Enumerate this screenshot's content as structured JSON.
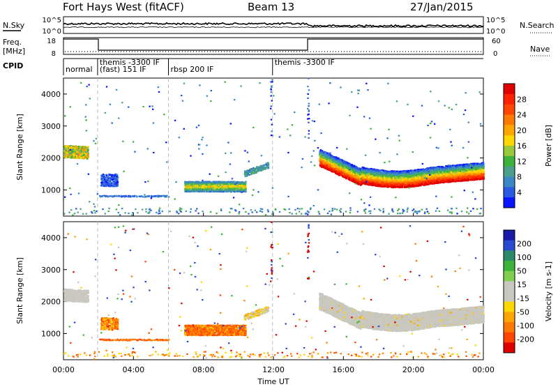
{
  "header": {
    "station": "Fort Hays West (fitACF)",
    "beam": "Beam 13",
    "date": "27/Jan/2015"
  },
  "strip_labels": {
    "nsky": "N.Sky",
    "nsearch": "N.Search",
    "freq": "Freq.",
    "freq_unit": "[MHz]",
    "nave": "Nave",
    "cpid": "CPID",
    "nsky_ticks": [
      "10^5",
      "10^0"
    ],
    "nsearch_ticks": [
      "10^5",
      "10^0"
    ],
    "freq_ticks": [
      "18",
      "8"
    ],
    "nave_ticks": [
      "60",
      "0"
    ]
  },
  "cpid_segments": [
    {
      "label": "normal",
      "start": 0.0
    },
    {
      "label": "themis -3300 IF",
      "start": 1.95
    },
    {
      "label": "(fast) 151 IF",
      "start": 1.95
    },
    {
      "label": "rbsp 200 IF",
      "start": 6.0
    },
    {
      "label": "themis -3300 IF",
      "start": 11.95
    }
  ],
  "chart_data": [
    {
      "type": "heatmap",
      "name": "power",
      "ylabel": "Slant Range [km]",
      "ylim": [
        180,
        4500
      ],
      "yticks": [
        1000,
        2000,
        3000,
        4000
      ],
      "colorbar": {
        "label": "Power [dB]",
        "ticks": [
          "4",
          "8",
          "12",
          "16",
          "20",
          "24",
          "28"
        ],
        "colors": [
          "#0a14ff",
          "#2a5ae0",
          "#3a88c8",
          "#4aa08c",
          "#3cb43c",
          "#9ac83c",
          "#ffd700",
          "#ffa500",
          "#ff7a00",
          "#ff4500",
          "#ff2000",
          "#e00000"
        ]
      }
    },
    {
      "type": "heatmap",
      "name": "velocity",
      "xlabel": "Time UT",
      "ylabel": "Slant Range [km]",
      "xlim": [
        0,
        24
      ],
      "xticks": [
        "00:00",
        "04:00",
        "08:00",
        "12:00",
        "16:00",
        "20:00",
        "00:00"
      ],
      "ylim": [
        180,
        4500
      ],
      "yticks": [
        1000,
        2000,
        3000,
        4000
      ],
      "colorbar": {
        "label": "Velocity [m s-1]",
        "ticks": [
          "200",
          "100",
          "50",
          "15",
          "-15",
          "-50",
          "-100",
          "-200"
        ],
        "colors": [
          "#1a1aa8",
          "#2a4ad0",
          "#2a8a6a",
          "#3cb43c",
          "#80d050",
          "#c8c8c0",
          "#c8c8c0",
          "#ffd700",
          "#ffa500",
          "#ff7a00",
          "#ff4500",
          "#e00000"
        ]
      }
    }
  ]
}
